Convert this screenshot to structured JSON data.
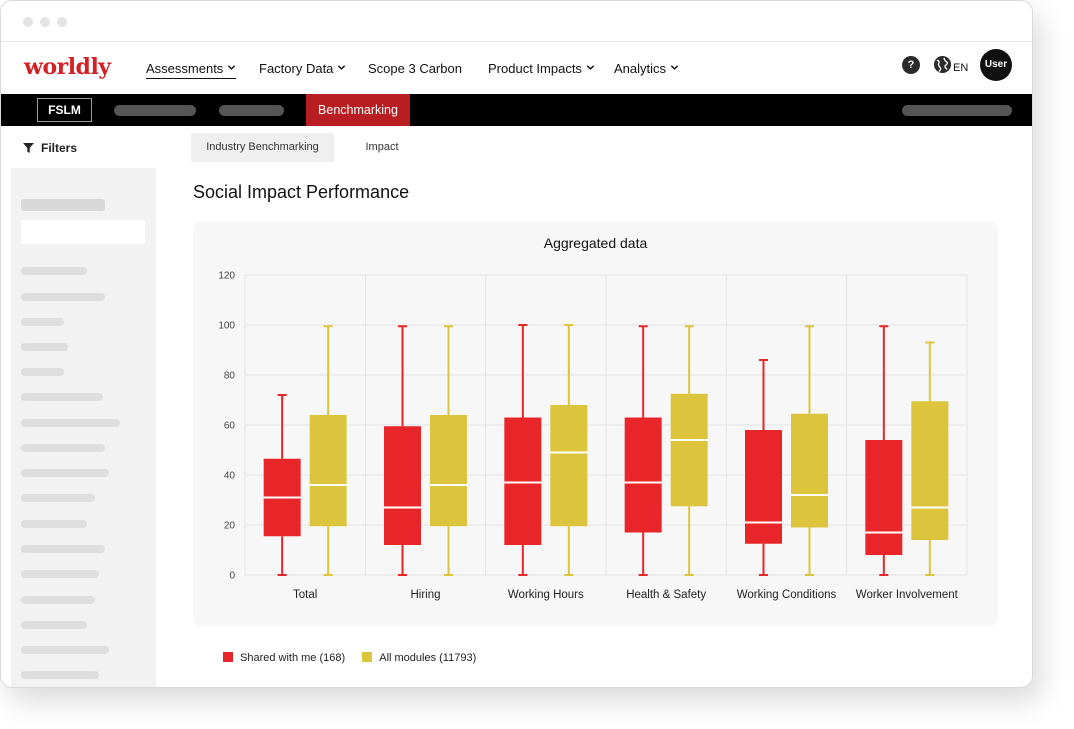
{
  "brand": {
    "logo": "worldly"
  },
  "nav": {
    "items": [
      "Assessments",
      "Factory Data",
      "Scope 3 Carbon",
      "Product Impacts",
      "Analytics"
    ],
    "help": "?",
    "lang": "EN",
    "user": "User"
  },
  "subnav": {
    "module": "FSLM",
    "active_tab": "Benchmarking"
  },
  "sidebar": {
    "filters_label": "Filters"
  },
  "tabs": [
    "Industry Benchmarking",
    "Impact"
  ],
  "page": {
    "title": "Social Impact Performance"
  },
  "colors": {
    "shared": "#e8262a",
    "all": "#dcc53c",
    "brand": "#d42127",
    "active_tab": "#b81d22"
  },
  "chart_data": {
    "type": "boxplot",
    "title": "Aggregated data",
    "categories": [
      "Total",
      "Hiring",
      "Working Hours",
      "Health & Safety",
      "Working Conditions",
      "Worker Involvement"
    ],
    "ylim": [
      0,
      120
    ],
    "yticks": [
      0,
      20,
      40,
      60,
      80,
      100,
      120
    ],
    "grid": true,
    "legend_position": "bottom-left",
    "series": [
      {
        "name": "Shared with me (168)",
        "color": "#e8262a",
        "boxes": [
          {
            "min": 0,
            "q1": 15.5,
            "median": 31,
            "q3": 46.5,
            "max": 72
          },
          {
            "min": 0,
            "q1": 12,
            "median": 27,
            "q3": 59.5,
            "max": 99.5
          },
          {
            "min": 0,
            "q1": 12,
            "median": 37,
            "q3": 63,
            "max": 100
          },
          {
            "min": 0,
            "q1": 17,
            "median": 37,
            "q3": 63,
            "max": 99.5
          },
          {
            "min": 0,
            "q1": 12.5,
            "median": 21,
            "q3": 58,
            "max": 86
          },
          {
            "min": 0,
            "q1": 8,
            "median": 17,
            "q3": 54,
            "max": 99.5
          }
        ]
      },
      {
        "name": "All modules (11793)",
        "color": "#dcc53c",
        "boxes": [
          {
            "min": 0,
            "q1": 19.5,
            "median": 36,
            "q3": 64,
            "max": 99.5
          },
          {
            "min": 0,
            "q1": 19.5,
            "median": 36,
            "q3": 64,
            "max": 99.5
          },
          {
            "min": 0,
            "q1": 19.5,
            "median": 49,
            "q3": 68,
            "max": 100
          },
          {
            "min": 0,
            "q1": 27.5,
            "median": 54,
            "q3": 72.5,
            "max": 99.5
          },
          {
            "min": 0,
            "q1": 19,
            "median": 32,
            "q3": 64.5,
            "max": 99.5
          },
          {
            "min": 0,
            "q1": 14,
            "median": 27,
            "q3": 69.5,
            "max": 93
          }
        ]
      }
    ]
  }
}
